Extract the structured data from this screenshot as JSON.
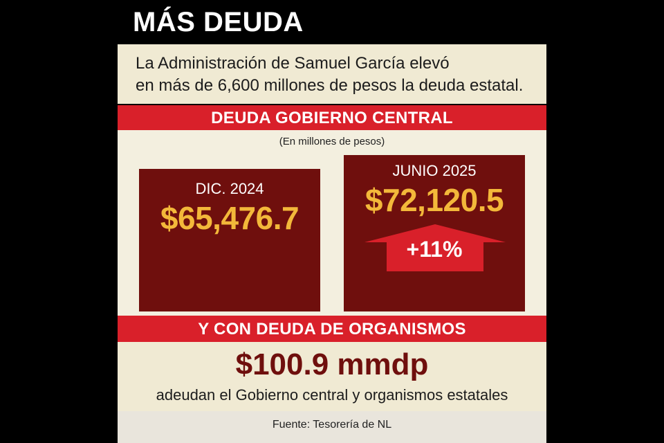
{
  "title": "MÁS DEUDA",
  "intro": {
    "line1": "La Administración de Samuel García elevó",
    "line2": "en más de 6,600 millones de pesos la deuda estatal."
  },
  "section1": {
    "heading": "DEUDA GOBIERNO CENTRAL",
    "unit": "(En millones de pesos)",
    "dec2024": {
      "label": "DIC. 2024",
      "value": "$65,476.7"
    },
    "jun2025": {
      "label": "JUNIO 2025",
      "value": "$72,120.5",
      "change": "+11%"
    }
  },
  "section2": {
    "heading": "Y CON DEUDA DE ORGANISMOS",
    "value": "$100.9 mmdp",
    "description": "adeudan el Gobierno central y organismos estatales"
  },
  "source": "Fuente: Tesorería de NL",
  "colors": {
    "red_band": "#d9202a",
    "dark_red": "#6f0f0d",
    "gold": "#f3b83a",
    "cream": "#f0ead3"
  }
}
